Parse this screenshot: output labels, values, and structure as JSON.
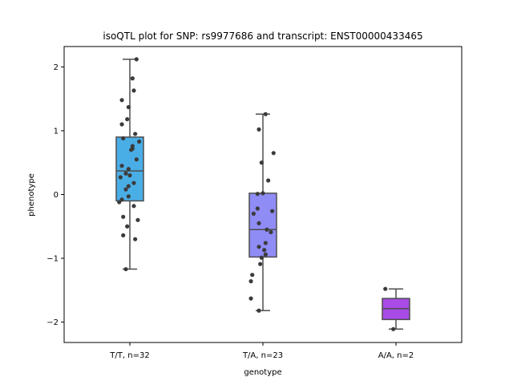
{
  "chart_data": {
    "type": "box",
    "title": "isoQTL plot for SNP: rs9977686 and transcript: ENST00000433465",
    "xlabel": "genotype",
    "ylabel": "phenotype",
    "ylim": [
      -2.32,
      2.32
    ],
    "yticks": [
      -2,
      -1,
      0,
      1,
      2
    ],
    "grid": false,
    "categories": [
      "T/T, n=32",
      "T/A, n=23",
      "A/A, n=2"
    ],
    "boxes": [
      {
        "category": "T/T, n=32",
        "color": "#4aaee6",
        "whisker_low": -1.17,
        "q1": -0.1,
        "median": 0.37,
        "q3": 0.9,
        "whisker_high": 2.12
      },
      {
        "category": "T/A, n=23",
        "color": "#8f8cf6",
        "whisker_low": -1.82,
        "q1": -0.98,
        "median": -0.55,
        "q3": 0.02,
        "whisker_high": 1.26
      },
      {
        "category": "A/A, n=2",
        "color": "#a94be6",
        "whisker_low": -2.11,
        "q1": -1.96,
        "median": -1.79,
        "q3": -1.63,
        "whisker_high": -1.48
      }
    ],
    "points": [
      {
        "category": 0,
        "x": 0.05,
        "y": 2.12
      },
      {
        "category": 0,
        "x": 0.02,
        "y": 1.82
      },
      {
        "category": 0,
        "x": 0.03,
        "y": 1.63
      },
      {
        "category": 0,
        "x": -0.06,
        "y": 1.48
      },
      {
        "category": 0,
        "x": -0.01,
        "y": 1.37
      },
      {
        "category": 0,
        "x": -0.02,
        "y": 1.18
      },
      {
        "category": 0,
        "x": -0.06,
        "y": 1.1
      },
      {
        "category": 0,
        "x": 0.04,
        "y": 0.95
      },
      {
        "category": 0,
        "x": -0.05,
        "y": 0.88
      },
      {
        "category": 0,
        "x": 0.07,
        "y": 0.83
      },
      {
        "category": 0,
        "x": 0.02,
        "y": 0.76
      },
      {
        "category": 0,
        "x": 0.01,
        "y": 0.7
      },
      {
        "category": 0,
        "x": 0.05,
        "y": 0.55
      },
      {
        "category": 0,
        "x": -0.06,
        "y": 0.45
      },
      {
        "category": 0,
        "x": -0.01,
        "y": 0.4
      },
      {
        "category": 0,
        "x": -0.03,
        "y": 0.33
      },
      {
        "category": 0,
        "x": -0.07,
        "y": 0.27
      },
      {
        "category": 0,
        "x": 0.03,
        "y": 0.18
      },
      {
        "category": 0,
        "x": -0.01,
        "y": 0.13
      },
      {
        "category": 0,
        "x": -0.03,
        "y": 0.08
      },
      {
        "category": 0,
        "x": -0.01,
        "y": -0.03
      },
      {
        "category": 0,
        "x": -0.06,
        "y": -0.08
      },
      {
        "category": 0,
        "x": -0.08,
        "y": -0.12
      },
      {
        "category": 0,
        "x": 0.03,
        "y": -0.18
      },
      {
        "category": 0,
        "x": -0.05,
        "y": -0.35
      },
      {
        "category": 0,
        "x": 0.06,
        "y": -0.4
      },
      {
        "category": 0,
        "x": -0.02,
        "y": -0.5
      },
      {
        "category": 0,
        "x": -0.05,
        "y": -0.64
      },
      {
        "category": 0,
        "x": 0.04,
        "y": -0.7
      },
      {
        "category": 0,
        "x": -0.03,
        "y": -1.17
      },
      {
        "category": 0,
        "x": 0.0,
        "y": 0.3
      },
      {
        "category": 0,
        "x": 0.02,
        "y": 0.72
      },
      {
        "category": 1,
        "x": 0.02,
        "y": 1.26
      },
      {
        "category": 1,
        "x": -0.03,
        "y": 1.02
      },
      {
        "category": 1,
        "x": 0.08,
        "y": 0.65
      },
      {
        "category": 1,
        "x": -0.01,
        "y": 0.5
      },
      {
        "category": 1,
        "x": 0.04,
        "y": 0.22
      },
      {
        "category": 1,
        "x": 0.0,
        "y": 0.02
      },
      {
        "category": 1,
        "x": -0.04,
        "y": 0.01
      },
      {
        "category": 1,
        "x": -0.04,
        "y": -0.22
      },
      {
        "category": 1,
        "x": 0.07,
        "y": -0.26
      },
      {
        "category": 1,
        "x": -0.07,
        "y": -0.3
      },
      {
        "category": 1,
        "x": -0.03,
        "y": -0.45
      },
      {
        "category": 1,
        "x": 0.03,
        "y": -0.55
      },
      {
        "category": 1,
        "x": 0.06,
        "y": -0.59
      },
      {
        "category": 1,
        "x": 0.02,
        "y": -0.76
      },
      {
        "category": 1,
        "x": -0.03,
        "y": -0.82
      },
      {
        "category": 1,
        "x": 0.01,
        "y": -0.87
      },
      {
        "category": 1,
        "x": 0.02,
        "y": -0.94
      },
      {
        "category": 1,
        "x": -0.01,
        "y": -0.99
      },
      {
        "category": 1,
        "x": -0.02,
        "y": -1.09
      },
      {
        "category": 1,
        "x": -0.08,
        "y": -1.26
      },
      {
        "category": 1,
        "x": -0.09,
        "y": -1.36
      },
      {
        "category": 1,
        "x": -0.09,
        "y": -1.63
      },
      {
        "category": 1,
        "x": -0.03,
        "y": -1.82
      },
      {
        "category": 2,
        "x": -0.08,
        "y": -1.48
      },
      {
        "category": 2,
        "x": -0.02,
        "y": -2.11
      }
    ]
  }
}
